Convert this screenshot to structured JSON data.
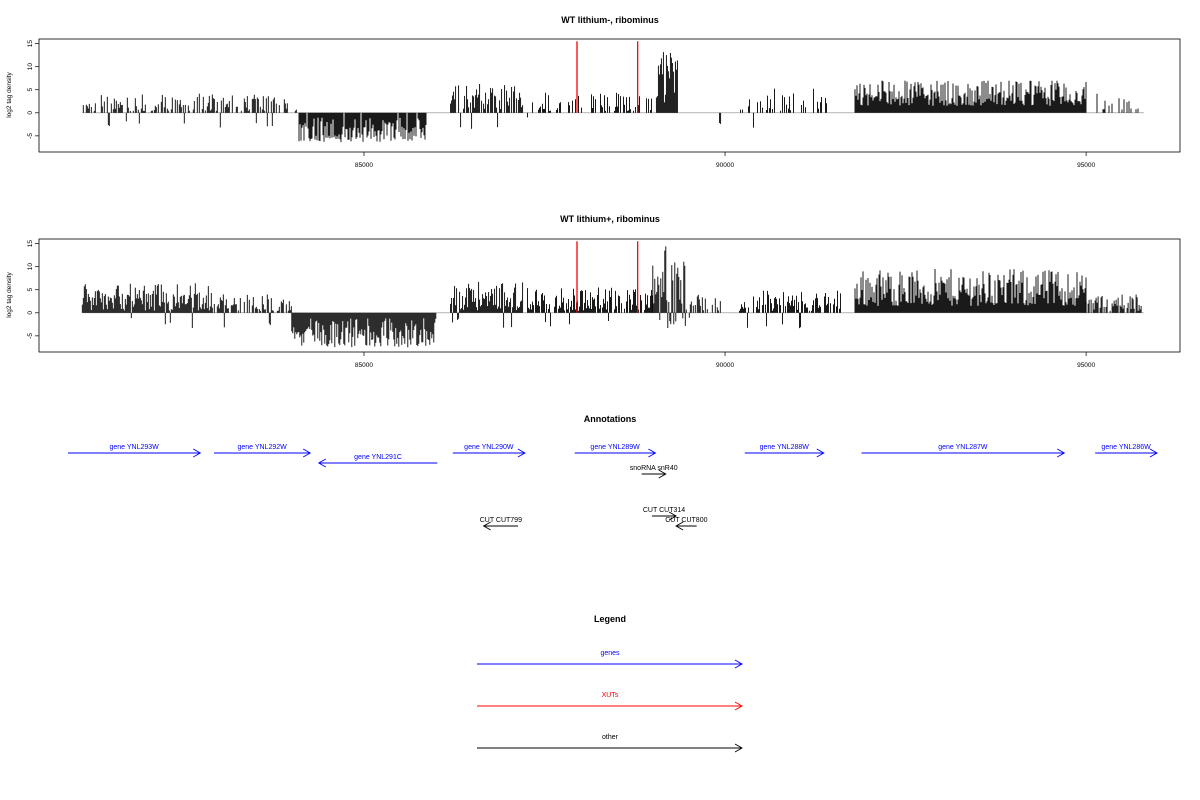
{
  "chart_data": [
    {
      "type": "bar",
      "title": "WT lithium-, ribominus",
      "ylabel": "log2 tag density",
      "xlim": [
        80500,
        96300
      ],
      "ylim": [
        -8.5,
        16
      ],
      "yticks": [
        -5,
        0,
        5,
        10,
        15
      ],
      "xticks": [
        85000,
        90000,
        95000
      ],
      "highlight_lines": [
        87950,
        88790
      ],
      "segments": [
        {
          "from": 81100,
          "to": 83800,
          "density": 0.55,
          "min": 0.4,
          "max": 4.2,
          "neg": 0.06
        },
        {
          "from": 83800,
          "to": 84100,
          "density": 0.4,
          "min": 0.4,
          "max": 3.0,
          "neg": 0.0
        },
        {
          "from": 84100,
          "to": 85900,
          "density": 0.95,
          "min": -6.5,
          "max": -1.0,
          "neg": 1.0
        },
        {
          "from": 86200,
          "to": 87200,
          "density": 0.7,
          "min": 0.8,
          "max": 6.5,
          "neg": 0.05
        },
        {
          "from": 87250,
          "to": 89000,
          "density": 0.35,
          "min": 0.4,
          "max": 4.5,
          "neg": 0.03
        },
        {
          "from": 89050,
          "to": 89350,
          "density": 1.0,
          "min": 2.0,
          "max": 14.5,
          "neg": 0.0
        },
        {
          "from": 89800,
          "to": 90200,
          "density": 0.1,
          "min": -2.5,
          "max": -1.0,
          "neg": 1.0
        },
        {
          "from": 90200,
          "to": 91500,
          "density": 0.35,
          "min": 0.4,
          "max": 5.5,
          "neg": 0.04
        },
        {
          "from": 91800,
          "to": 95000,
          "density": 1.0,
          "min": 1.5,
          "max": 7.0,
          "neg": 0.0
        },
        {
          "from": 95150,
          "to": 95800,
          "density": 0.3,
          "min": 0.5,
          "max": 4.2,
          "neg": 0.0
        }
      ]
    },
    {
      "type": "bar",
      "title": "WT lithium+, ribominus",
      "ylabel": "log2 tag density",
      "xlim": [
        80500,
        96300
      ],
      "ylim": [
        -8.5,
        16
      ],
      "yticks": [
        -5,
        0,
        5,
        10,
        15
      ],
      "xticks": [
        85000,
        90000,
        95000
      ],
      "highlight_lines": [
        87950,
        88790
      ],
      "segments": [
        {
          "from": 81100,
          "to": 82900,
          "density": 1.0,
          "min": 0.5,
          "max": 6.5,
          "neg": 0.05
        },
        {
          "from": 82900,
          "to": 84000,
          "density": 0.7,
          "min": 0.4,
          "max": 4.0,
          "neg": 0.05
        },
        {
          "from": 84000,
          "to": 86000,
          "density": 1.0,
          "min": -7.5,
          "max": -1.0,
          "neg": 1.0
        },
        {
          "from": 86200,
          "to": 87200,
          "density": 1.0,
          "min": 0.5,
          "max": 6.8,
          "neg": 0.05
        },
        {
          "from": 87250,
          "to": 89000,
          "density": 0.85,
          "min": 0.4,
          "max": 5.5,
          "neg": 0.06
        },
        {
          "from": 89000,
          "to": 89450,
          "density": 1.0,
          "min": 2.0,
          "max": 15.5,
          "neg": 0.08
        },
        {
          "from": 89450,
          "to": 89950,
          "density": 0.45,
          "min": 0.5,
          "max": 4.0,
          "neg": 0.1
        },
        {
          "from": 90200,
          "to": 91600,
          "density": 0.75,
          "min": 0.4,
          "max": 5.0,
          "neg": 0.05
        },
        {
          "from": 91800,
          "to": 95000,
          "density": 1.0,
          "min": 1.5,
          "max": 9.5,
          "neg": 0.0
        },
        {
          "from": 95000,
          "to": 95800,
          "density": 0.7,
          "min": 0.4,
          "max": 4.0,
          "neg": 0.04
        }
      ]
    },
    {
      "type": "other",
      "title": "Annotations",
      "features": [
        {
          "label": "gene YNL293W",
          "kind": "gene",
          "strand": "+",
          "start": 80700,
          "end": 84550
        },
        {
          "label": "gene YNL292W",
          "kind": "gene",
          "strand": "+",
          "start": 84950,
          "end": 87750
        },
        {
          "label": "gene YNL291C",
          "kind": "gene",
          "strand": "-",
          "start": 88000,
          "end": 91450,
          "row": 1
        },
        {
          "label": "gene YNL290W",
          "kind": "gene",
          "strand": "+",
          "start": 91900,
          "end": 94000
        },
        {
          "label": "gene YNL289W",
          "kind": "gene",
          "strand": "+",
          "start": 95450,
          "end": 97800
        },
        {
          "label": "snoRNA snR40",
          "kind": "other",
          "strand": "+",
          "start": 97400,
          "end": 98100,
          "row": 2
        },
        {
          "label": "gene YNL288W",
          "kind": "gene",
          "strand": "+",
          "start": 100400,
          "end": 102700
        },
        {
          "label": "gene YNL287W",
          "kind": "gene",
          "strand": "+",
          "start": 103800,
          "end": 109700
        },
        {
          "label": "gene YNL286W",
          "kind": "gene",
          "strand": "+",
          "start": 110600,
          "end": 112400
        },
        {
          "label": "CUT CUT314",
          "kind": "other",
          "strand": "+",
          "start": 97700,
          "end": 98400,
          "row": 3
        },
        {
          "label": "CUT CUT799",
          "kind": "other",
          "strand": "-",
          "start": 92800,
          "end": 93800,
          "row": 4
        },
        {
          "label": "CUT CUT800",
          "kind": "other",
          "strand": "-",
          "start": 98400,
          "end": 99000,
          "row": 4
        }
      ]
    },
    {
      "type": "other",
      "title": "Legend",
      "entries": [
        {
          "label": "genes",
          "color": "#0000ff"
        },
        {
          "label": "XUTs",
          "color": "#ff0000"
        },
        {
          "label": "other",
          "color": "#000000"
        }
      ]
    }
  ],
  "colors": {
    "gene": "#0000ff",
    "xut": "#ff0000",
    "other": "#000000",
    "highlight": "#ff0000"
  }
}
